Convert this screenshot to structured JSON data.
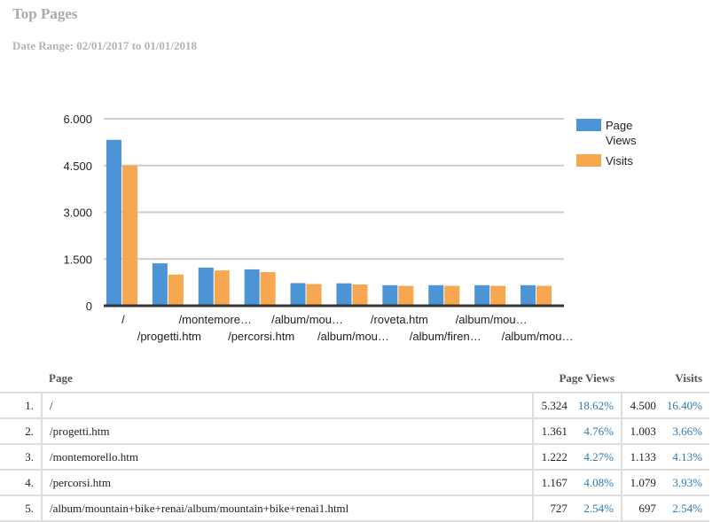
{
  "header": {
    "title": "Top Pages",
    "date_range": "Date Range: 02/01/2017 to 01/01/2018"
  },
  "chart_data": {
    "type": "bar",
    "categories": [
      "/",
      "/progetti.htm",
      "/montemore…",
      "/percorsi.htm",
      "/album/mou…",
      "/album/mou…",
      "/roveta.htm",
      "/album/firen…",
      "/album/mou…",
      "/album/mou…"
    ],
    "series": [
      {
        "name": "Page Views",
        "color": "#4d94d6",
        "values": [
          5324,
          1361,
          1222,
          1167,
          727,
          720,
          660,
          660,
          660,
          660
        ]
      },
      {
        "name": "Visits",
        "color": "#f6a74f",
        "values": [
          4500,
          1003,
          1133,
          1079,
          697,
          680,
          640,
          640,
          640,
          640
        ]
      }
    ],
    "yticks": [
      "0",
      "1.500",
      "3.000",
      "4.500",
      "6.000"
    ],
    "ytick_values": [
      0,
      1500,
      3000,
      4500,
      6000
    ],
    "ylim": [
      0,
      6000
    ],
    "grid": true,
    "legend": "right",
    "legend_labels": [
      "Page",
      "Views",
      "Visits"
    ]
  },
  "table": {
    "headers": {
      "page": "Page",
      "views": "Page Views",
      "visits": "Visits"
    },
    "rows": [
      {
        "idx": "1.",
        "page": "/",
        "views": "5.324",
        "views_pct": "18.62%",
        "visits": "4.500",
        "visits_pct": "16.40%"
      },
      {
        "idx": "2.",
        "page": "/progetti.htm",
        "views": "1.361",
        "views_pct": "4.76%",
        "visits": "1.003",
        "visits_pct": "3.66%"
      },
      {
        "idx": "3.",
        "page": "/montemorello.htm",
        "views": "1.222",
        "views_pct": "4.27%",
        "visits": "1.133",
        "visits_pct": "4.13%"
      },
      {
        "idx": "4.",
        "page": "/percorsi.htm",
        "views": "1.167",
        "views_pct": "4.08%",
        "visits": "1.079",
        "visits_pct": "3.93%"
      },
      {
        "idx": "5.",
        "page": "/album/mountain+bike+renai/album/mountain+bike+renai1.html",
        "views": "727",
        "views_pct": "2.54%",
        "visits": "697",
        "visits_pct": "2.54%"
      }
    ]
  }
}
